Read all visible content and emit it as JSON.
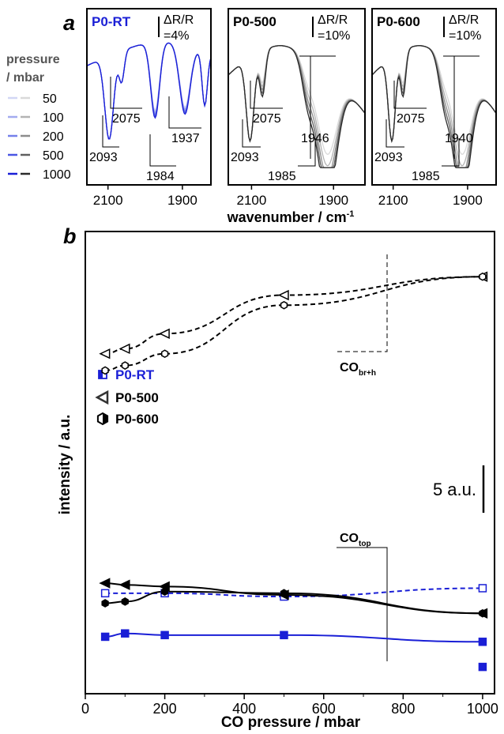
{
  "panel_a_letter": "a",
  "panel_b_letter": "b",
  "pressure_legend": {
    "title_line1": "pressure",
    "title_line2": "/ mbar",
    "labels": [
      "50",
      "100",
      "200",
      "500",
      "1000"
    ],
    "blue_colors": [
      "#d2d6f5",
      "#a3abef",
      "#7580ea",
      "#4a56e4",
      "#1a1fd6"
    ],
    "gray_colors": [
      "#d9d9d9",
      "#b3b3b3",
      "#8c8c8c",
      "#5f5f5f",
      "#2b2b2b"
    ]
  },
  "panel_a_xlabel": "wavenumber / cm",
  "panel_a_xlabel_sup": "-1",
  "panels_a": [
    {
      "title": "P0-RT",
      "title_color": "#1a1fd6",
      "scale_l1": "ΔR/R",
      "scale_l2": "=4%",
      "ticks": [
        "2100",
        "1900"
      ],
      "anns": [
        "2093",
        "2075",
        "1984",
        "1937"
      ]
    },
    {
      "title": "P0-500",
      "title_color": "#000000",
      "scale_l1": "ΔR/R",
      "scale_l2": "=10%",
      "ticks": [
        "2100",
        "1900"
      ],
      "anns": [
        "2093",
        "2075",
        "1985",
        "1946"
      ]
    },
    {
      "title": "P0-600",
      "title_color": "#000000",
      "scale_l1": "ΔR/R",
      "scale_l2": "=10%",
      "ticks": [
        "2100",
        "1900"
      ],
      "anns": [
        "2093",
        "2075",
        "1985",
        "1940"
      ]
    }
  ],
  "chart_data": {
    "type": "scatter",
    "xlabel": "CO pressure / mbar",
    "ylabel": "intensity / a.u.",
    "xlim": [
      0,
      1030
    ],
    "xticks": [
      0,
      200,
      400,
      600,
      800,
      1000
    ],
    "scale_bar_label": "5 a.u.",
    "legend": [
      {
        "name": "P0-RT",
        "color": "#1a1fd6",
        "marker": "square"
      },
      {
        "name": "P0-500",
        "color": "#333333",
        "marker": "triangle-left"
      },
      {
        "name": "P0-600",
        "color": "#000000",
        "marker": "hexagon"
      }
    ],
    "annotations": [
      {
        "main": "CO",
        "sub": "br+h"
      },
      {
        "main": "CO",
        "sub": "top"
      }
    ],
    "series": [
      {
        "name": "P0-500",
        "band": "br+h",
        "marker": "triangle-left",
        "filled": false,
        "color": "#000000",
        "line": "dashed",
        "x": [
          50,
          100,
          200,
          500,
          1000
        ],
        "y": [
          25.3,
          25.6,
          26.5,
          28.8,
          29.9
        ]
      },
      {
        "name": "P0-600",
        "band": "br+h",
        "marker": "hexagon",
        "filled": false,
        "color": "#000000",
        "line": "dashed",
        "x": [
          50,
          100,
          200,
          500,
          1000
        ],
        "y": [
          24.3,
          24.6,
          25.3,
          28.2,
          29.9
        ]
      },
      {
        "name": "P0-RT",
        "band": "br+h",
        "marker": "square",
        "filled": false,
        "color": "#1a1fd6",
        "line": "dashed",
        "x": [
          50,
          200,
          500,
          1000
        ],
        "y": [
          11.0,
          11.0,
          10.8,
          11.3
        ]
      },
      {
        "name": "P0-500",
        "band": "top",
        "marker": "triangle-left",
        "filled": true,
        "color": "#000000",
        "line": "solid",
        "x": [
          50,
          100,
          200,
          500,
          1000
        ],
        "y": [
          11.6,
          11.5,
          11.4,
          10.9,
          9.8
        ]
      },
      {
        "name": "P0-600",
        "band": "top",
        "marker": "hexagon",
        "filled": true,
        "color": "#000000",
        "line": "solid",
        "x": [
          50,
          100,
          200,
          500,
          1000
        ],
        "y": [
          10.4,
          10.5,
          11.1,
          11.0,
          9.8
        ]
      },
      {
        "name": "P0-RT",
        "band": "top",
        "marker": "square",
        "filled": true,
        "color": "#1a1fd6",
        "line": "solid",
        "x": [
          50,
          100,
          200,
          500,
          1000,
          1000
        ],
        "y": [
          8.4,
          8.6,
          8.5,
          8.5,
          8.1,
          6.6
        ]
      }
    ]
  }
}
